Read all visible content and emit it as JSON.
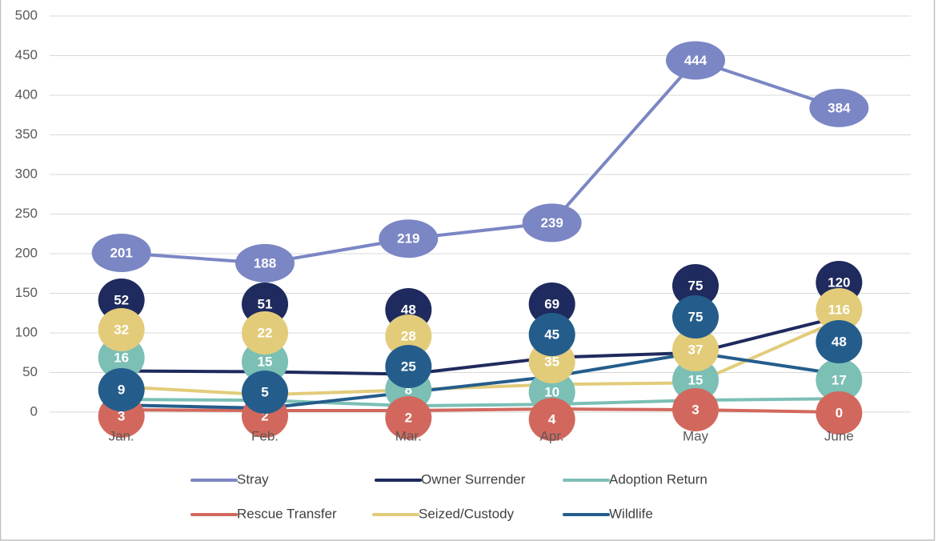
{
  "chart_data": {
    "type": "line",
    "categories": [
      "Jan.",
      "Feb.",
      "Mar.",
      "Apr.",
      "May",
      "June"
    ],
    "series": [
      {
        "name": "Stray",
        "color": "#7b86c4",
        "values": [
          201,
          188,
          219,
          239,
          444,
          384
        ]
      },
      {
        "name": "Owner Surrender",
        "color": "#1f2a5e",
        "values": [
          52,
          51,
          48,
          69,
          75,
          120
        ]
      },
      {
        "name": "Adoption Return",
        "color": "#7bbfb5",
        "values": [
          16,
          15,
          8,
          10,
          15,
          17
        ]
      },
      {
        "name": "Rescue Transfer",
        "color": "#d2685d",
        "values": [
          3,
          2,
          2,
          4,
          3,
          0
        ]
      },
      {
        "name": "Seized/Custody",
        "color": "#e2cc7a",
        "values": [
          32,
          22,
          28,
          35,
          37,
          116
        ]
      },
      {
        "name": "Wildlife",
        "color": "#245d8c",
        "values": [
          9,
          5,
          25,
          45,
          75,
          48
        ]
      }
    ],
    "ylim": [
      0,
      500
    ],
    "yticks": [
      0,
      50,
      100,
      150,
      200,
      250,
      300,
      350,
      400,
      450,
      500
    ],
    "grid": true,
    "legend": "bottom"
  }
}
